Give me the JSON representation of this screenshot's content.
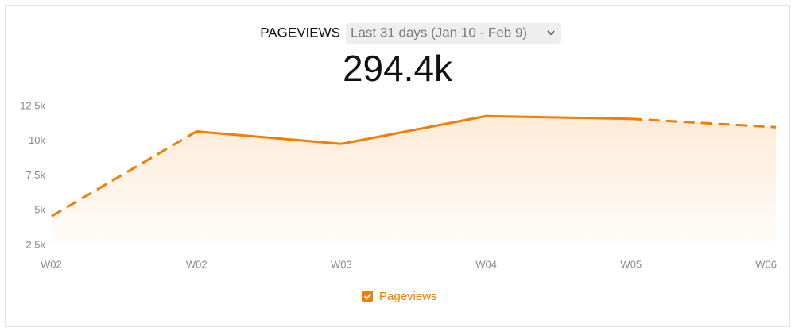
{
  "chart_data": {
    "type": "area",
    "title": "PAGEVIEWS",
    "period": "Last 31 days (Jan 10 - Feb 9)",
    "headline": "294.4k",
    "categories": [
      "W02",
      "W02",
      "W03",
      "W04",
      "W05",
      "W06"
    ],
    "series": [
      {
        "name": "Pageviews",
        "color": "#f57c00",
        "values": [
          4600,
          10700,
          9800,
          11800,
          11600,
          11000
        ]
      }
    ],
    "dashed_ends": true,
    "ylim": [
      2500,
      12500
    ],
    "yticks": [
      {
        "value": 2500,
        "label": "2.5k"
      },
      {
        "value": 5000,
        "label": "5k"
      },
      {
        "value": 7500,
        "label": "7.5k"
      },
      {
        "value": 10000,
        "label": "10k"
      },
      {
        "value": 12500,
        "label": "12.5k"
      }
    ],
    "grid": false
  }
}
